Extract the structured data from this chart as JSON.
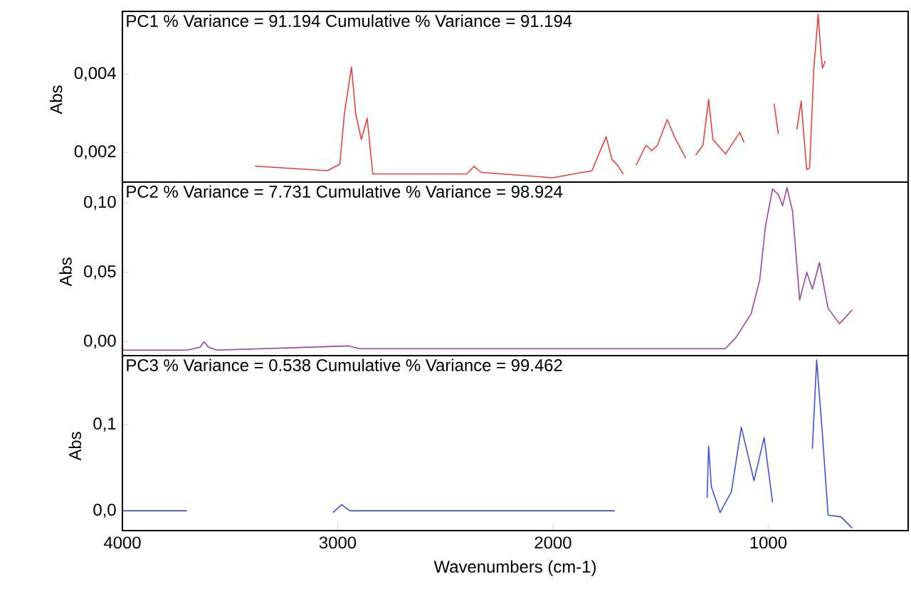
{
  "chart_data": [
    {
      "type": "line",
      "title": "PC1 % Variance = 91.194 Cumulative % Variance = 91.194",
      "ylabel": "Abs",
      "tick_labels": "y",
      "xlim": [
        4000,
        350
      ],
      "ylim": [
        0.00124,
        0.0056
      ],
      "yticks": [
        {
          "value": 0.002,
          "label": "0,002"
        },
        {
          "value": 0.004,
          "label": "0,004"
        }
      ],
      "x": [
        3385,
        3048,
        2990,
        2969,
        2936,
        2916,
        2890,
        2863,
        2837,
        2400,
        2367,
        2334,
        2004,
        1819,
        1753,
        1726,
        1700,
        1674,
        1640,
        1614,
        1568,
        1541,
        1515,
        1469,
        1436,
        1383,
        1360,
        1337,
        1303,
        1277,
        1257,
        1198,
        1132,
        1112,
        1040,
        973,
        953,
        910,
        867,
        847,
        834,
        821,
        808,
        788,
        768,
        755,
        748,
        735
      ],
      "series": [
        {
          "color": "#e8403a",
          "values": [
            0.00165,
            0.00153,
            0.0017,
            0.00298,
            0.00418,
            0.00298,
            0.00233,
            0.00287,
            0.00145,
            0.00145,
            0.00164,
            0.00149,
            0.00135,
            0.00153,
            0.0024,
            0.00182,
            0.00167,
            0.00145,
            null,
            0.00167,
            0.00218,
            0.00204,
            0.00218,
            0.00284,
            0.0024,
            0.00185,
            null,
            0.00193,
            0.00218,
            0.00335,
            0.00233,
            0.00196,
            0.00251,
            0.00225,
            null,
            0.00324,
            0.00247,
            null,
            0.00258,
            0.00331,
            0.0024,
            0.00156,
            0.0016,
            0.00415,
            0.00553,
            0.00451,
            0.00415,
            0.00433
          ]
        }
      ]
    },
    {
      "type": "line",
      "title": "PC2 % Variance = 7.731 Cumulative % Variance = 98.924",
      "ylabel": "Abs",
      "tick_labels": "y",
      "xlim": [
        4000,
        350
      ],
      "ylim": [
        -0.01,
        0.115
      ],
      "yticks": [
        {
          "value": 0,
          "label": "0,00"
        },
        {
          "value": 0.05,
          "label": "0,05"
        },
        {
          "value": 0.1,
          "label": "0,10"
        }
      ],
      "x": [
        4000,
        3700,
        3640,
        3620,
        3600,
        3560,
        2950,
        2900,
        1200,
        1150,
        1080,
        1040,
        1013,
        980,
        953,
        933,
        913,
        887,
        854,
        821,
        795,
        762,
        722,
        669,
        610
      ],
      "series": [
        {
          "color": "#a040a0",
          "values": [
            -0.006,
            -0.006,
            -0.004,
            0.0,
            -0.004,
            -0.006,
            -0.003,
            -0.005,
            -0.005,
            0.003,
            0.02,
            0.044,
            0.083,
            0.11,
            0.106,
            0.098,
            0.111,
            0.094,
            0.03,
            0.05,
            0.038,
            0.057,
            0.024,
            0.013,
            0.023
          ]
        }
      ]
    },
    {
      "type": "line",
      "title": "PC3 % Variance = 0.538 Cumulative % Variance = 99.462",
      "ylabel": "Abs",
      "xlabel": "Wavenumbers (cm-1)",
      "xlim": [
        4000,
        350
      ],
      "ylim": [
        -0.023,
        0.18
      ],
      "xticks": [
        4000,
        3000,
        2000,
        1000
      ],
      "yticks": [
        {
          "value": 0,
          "label": "0,0"
        },
        {
          "value": 0.1,
          "label": "0,1"
        }
      ],
      "x": [
        4000,
        3700,
        3300,
        3022,
        2982,
        2943,
        1713,
        1500,
        1284,
        1277,
        1264,
        1224,
        1171,
        1125,
        1066,
        1019,
        980,
        900,
        795,
        775,
        748,
        722,
        662,
        610
      ],
      "series": [
        {
          "color": "#4050e0",
          "values": [
            0,
            0,
            null,
            -0.002,
            0.007,
            0,
            0,
            null,
            0.015,
            0.075,
            0.028,
            -0.002,
            0.022,
            0.097,
            0.035,
            0.085,
            0.01,
            null,
            0.072,
            0.175,
            0.088,
            -0.005,
            -0.007,
            -0.02
          ]
        }
      ]
    }
  ]
}
